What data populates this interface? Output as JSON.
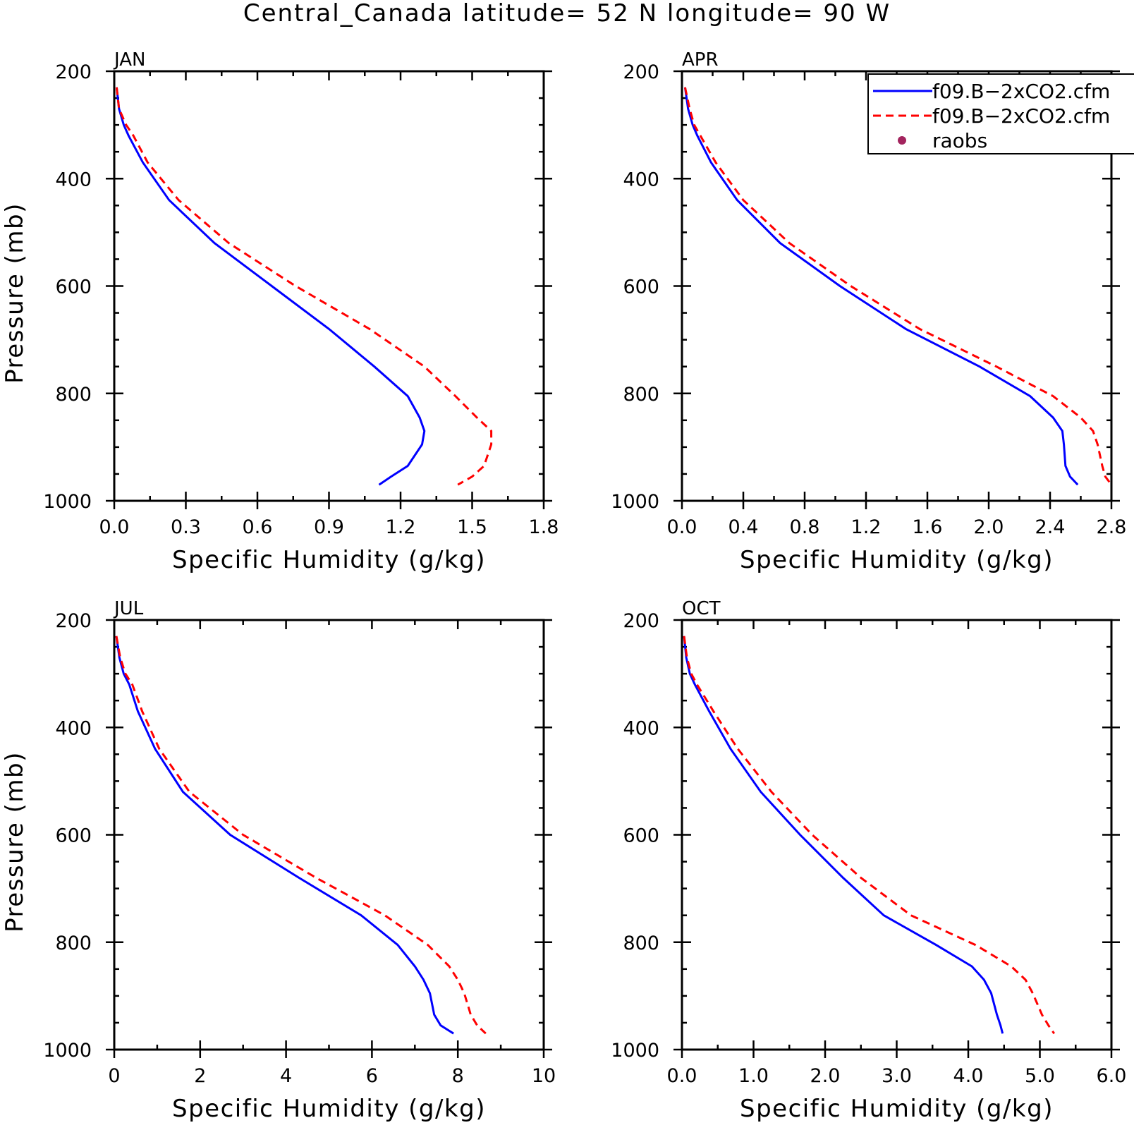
{
  "title": "Central_Canada  latitude= 52 N longitude= 90 W",
  "colors": {
    "model_solid": "#0000ff",
    "model_dashed": "#ff0000",
    "raobs": "#a3245e"
  },
  "legend": {
    "placement": "top-right of APR panel",
    "items": [
      {
        "label": "f09.B−2xCO2.cfm",
        "style": "solid-line",
        "color": "#0000ff"
      },
      {
        "label": "f09.B−2xCO2.cfm",
        "style": "dashed-line",
        "color": "#ff0000"
      },
      {
        "label": "raobs",
        "style": "dot",
        "color": "#a3245e"
      }
    ]
  },
  "chart_data": [
    {
      "type": "line",
      "panel": "JAN",
      "xlabel": "Specific Humidity (g/kg)",
      "ylabel": "Pressure (mb)",
      "xlim": [
        0,
        1.8
      ],
      "ylim": [
        1000,
        200
      ],
      "y_reversed": true,
      "xticks": [
        "0.0",
        "0.3",
        "0.6",
        "0.9",
        "1.2",
        "1.5",
        "1.8"
      ],
      "yticks": [
        "200",
        "400",
        "600",
        "800",
        "1000"
      ],
      "series": [
        {
          "style": "solid",
          "x": [
            0.01,
            0.02,
            0.04,
            0.06,
            0.12,
            0.23,
            0.42,
            0.66,
            0.9,
            1.09,
            1.23,
            1.28,
            1.3,
            1.29,
            1.23,
            1.16,
            1.11
          ],
          "y": [
            230,
            270,
            300,
            320,
            370,
            440,
            520,
            600,
            680,
            750,
            805,
            845,
            870,
            895,
            935,
            955,
            970
          ]
        },
        {
          "style": "dashed",
          "x": [
            0.01,
            0.02,
            0.05,
            0.08,
            0.14,
            0.27,
            0.48,
            0.76,
            1.07,
            1.3,
            1.43,
            1.52,
            1.58,
            1.58,
            1.55,
            1.5,
            1.44
          ],
          "y": [
            230,
            270,
            300,
            320,
            370,
            440,
            520,
            600,
            680,
            750,
            805,
            845,
            870,
            895,
            935,
            955,
            970
          ]
        }
      ]
    },
    {
      "type": "line",
      "panel": "APR",
      "xlabel": "Specific Humidity (g/kg)",
      "ylabel": "",
      "xlim": [
        0,
        2.8
      ],
      "ylim": [
        1000,
        200
      ],
      "y_reversed": true,
      "xticks": [
        "0.0",
        "0.4",
        "0.8",
        "1.2",
        "1.6",
        "2.0",
        "2.4",
        "2.8"
      ],
      "yticks": [
        "200",
        "400",
        "600",
        "800",
        "1000"
      ],
      "series": [
        {
          "style": "solid",
          "x": [
            0.02,
            0.04,
            0.07,
            0.1,
            0.19,
            0.36,
            0.64,
            1.03,
            1.46,
            1.94,
            2.27,
            2.42,
            2.48,
            2.49,
            2.5,
            2.53,
            2.58
          ],
          "y": [
            230,
            270,
            300,
            320,
            370,
            440,
            520,
            600,
            680,
            750,
            805,
            845,
            870,
            895,
            935,
            955,
            970
          ]
        },
        {
          "style": "dashed",
          "x": [
            0.02,
            0.05,
            0.08,
            0.12,
            0.22,
            0.4,
            0.7,
            1.1,
            1.55,
            2.05,
            2.42,
            2.6,
            2.68,
            2.71,
            2.74,
            2.76,
            2.8
          ],
          "y": [
            230,
            270,
            300,
            320,
            370,
            440,
            520,
            600,
            680,
            750,
            805,
            845,
            870,
            895,
            935,
            955,
            970
          ]
        }
      ]
    },
    {
      "type": "line",
      "panel": "JUL",
      "xlabel": "Specific Humidity (g/kg)",
      "ylabel": "Pressure (mb)",
      "xlim": [
        0,
        10
      ],
      "ylim": [
        1000,
        200
      ],
      "y_reversed": true,
      "xticks": [
        "0",
        "2",
        "4",
        "6",
        "8",
        "10"
      ],
      "yticks": [
        "200",
        "400",
        "600",
        "800",
        "1000"
      ],
      "series": [
        {
          "style": "solid",
          "x": [
            0.05,
            0.12,
            0.22,
            0.35,
            0.55,
            0.95,
            1.6,
            2.7,
            4.3,
            5.75,
            6.6,
            7.0,
            7.2,
            7.35,
            7.45,
            7.6,
            7.9
          ],
          "y": [
            230,
            270,
            300,
            320,
            370,
            440,
            520,
            600,
            680,
            750,
            805,
            845,
            870,
            895,
            935,
            955,
            970
          ]
        },
        {
          "style": "dashed",
          "x": [
            0.05,
            0.14,
            0.26,
            0.42,
            0.65,
            1.05,
            1.75,
            3.0,
            4.7,
            6.3,
            7.3,
            7.8,
            8.0,
            8.15,
            8.3,
            8.45,
            8.65
          ],
          "y": [
            230,
            270,
            300,
            320,
            370,
            440,
            520,
            600,
            680,
            750,
            805,
            845,
            870,
            895,
            935,
            955,
            970
          ]
        }
      ]
    },
    {
      "type": "line",
      "panel": "OCT",
      "xlabel": "Specific Humidity (g/kg)",
      "ylabel": "",
      "xlim": [
        0,
        6.0
      ],
      "ylim": [
        1000,
        200
      ],
      "y_reversed": true,
      "xticks": [
        "0.0",
        "1.0",
        "2.0",
        "3.0",
        "4.0",
        "5.0",
        "6.0"
      ],
      "yticks": [
        "200",
        "400",
        "600",
        "800",
        "1000"
      ],
      "series": [
        {
          "style": "solid",
          "x": [
            0.03,
            0.06,
            0.11,
            0.18,
            0.38,
            0.68,
            1.1,
            1.65,
            2.25,
            2.82,
            3.55,
            4.05,
            4.22,
            4.32,
            4.4,
            4.45,
            4.48
          ],
          "y": [
            230,
            270,
            300,
            320,
            370,
            440,
            520,
            600,
            680,
            750,
            805,
            845,
            870,
            895,
            935,
            955,
            970
          ]
        },
        {
          "style": "dashed",
          "x": [
            0.03,
            0.07,
            0.13,
            0.21,
            0.44,
            0.78,
            1.25,
            1.82,
            2.5,
            3.2,
            4.1,
            4.6,
            4.8,
            4.9,
            5.03,
            5.12,
            5.2
          ],
          "y": [
            230,
            270,
            300,
            320,
            370,
            440,
            520,
            600,
            680,
            750,
            805,
            845,
            870,
            895,
            935,
            955,
            970
          ]
        }
      ]
    }
  ]
}
